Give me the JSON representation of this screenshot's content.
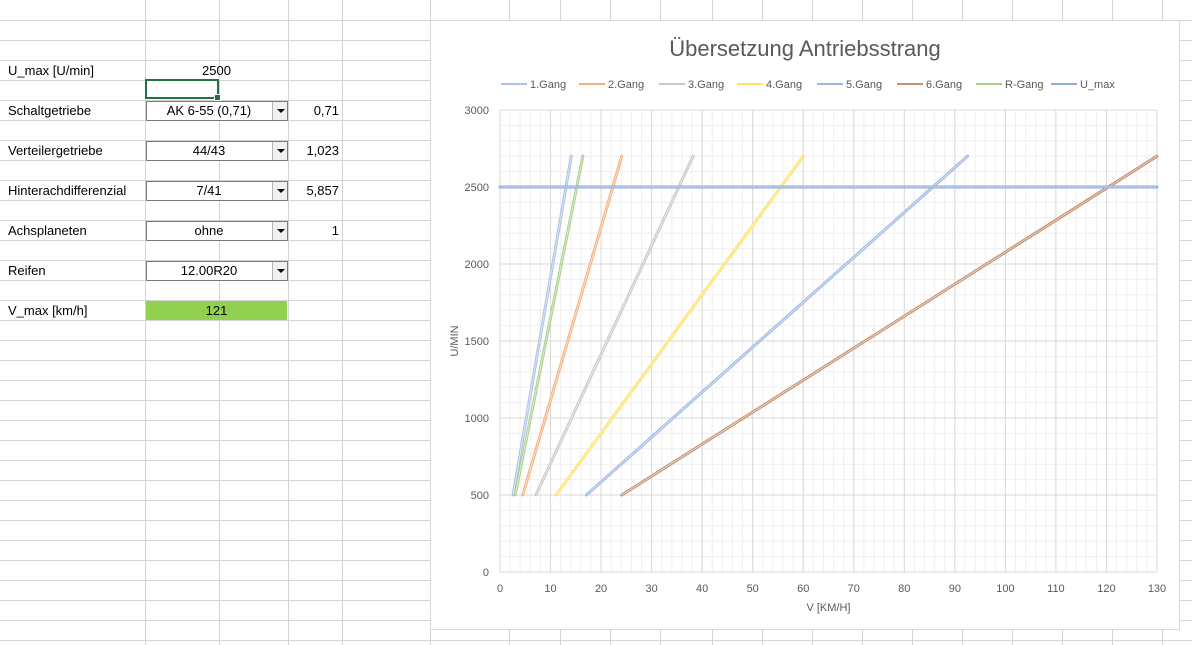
{
  "sheet": {
    "rows": [
      {
        "label": "U_max [U/min]",
        "value": "2500"
      },
      {
        "label": "Schaltgetriebe",
        "selection": "AK 6-55 (0,71)",
        "result": "0,71"
      },
      {
        "label": "Verteilergetriebe",
        "selection": "44/43",
        "result": "1,023"
      },
      {
        "label": "Hinterachdifferenzial",
        "selection": "7/41",
        "result": "5,857"
      },
      {
        "label": "Achsplaneten",
        "selection": "ohne",
        "result": "1"
      },
      {
        "label": "Reifen",
        "selection": "12.00R20"
      },
      {
        "label": "V_max [km/h]",
        "value": "121"
      }
    ],
    "colors": {
      "highlight": "#92d050",
      "selection_border": "#217346",
      "gridline": "#d4d4d4"
    }
  },
  "chart_data": {
    "type": "line",
    "title": "Übersetzung Antriebsstrang",
    "xlabel": "V [KM/H]",
    "ylabel": "U/MIN",
    "xlim": [
      0,
      130
    ],
    "ylim": [
      0,
      3000
    ],
    "xticks": [
      "0",
      "10",
      "20",
      "30",
      "40",
      "50",
      "60",
      "70",
      "80",
      "90",
      "100",
      "110",
      "120",
      "130"
    ],
    "yticks": [
      "0",
      "500",
      "1000",
      "1500",
      "2000",
      "2500",
      "3000"
    ],
    "grid": true,
    "legend_position": "top",
    "series": [
      {
        "name": "1.Gang",
        "color": "#a9c4e6",
        "x": [
          2.6,
          14.1
        ],
        "y": [
          500,
          2700
        ]
      },
      {
        "name": "2.Gang",
        "color": "#f4b183",
        "x": [
          4.5,
          24.1
        ],
        "y": [
          500,
          2700
        ]
      },
      {
        "name": "3.Gang",
        "color": "#c9c9c9",
        "x": [
          7.1,
          38.2
        ],
        "y": [
          500,
          2700
        ]
      },
      {
        "name": "4.Gang",
        "color": "#ffe066",
        "x": [
          11.1,
          60.0
        ],
        "y": [
          500,
          2700
        ]
      },
      {
        "name": "5.Gang",
        "color": "#9fb8e3",
        "x": [
          17.1,
          92.5
        ],
        "y": [
          500,
          2700
        ]
      },
      {
        "name": "6.Gang",
        "color": "#c5906c",
        "x": [
          24.1,
          130.0
        ],
        "y": [
          500,
          2700
        ]
      },
      {
        "name": "R-Gang",
        "color": "#a9d18e",
        "x": [
          3.0,
          16.4
        ],
        "y": [
          500,
          2700
        ]
      },
      {
        "name": "U_max",
        "color": "#8faadc",
        "x": [
          0,
          130
        ],
        "y": [
          2500,
          2500
        ]
      }
    ]
  }
}
